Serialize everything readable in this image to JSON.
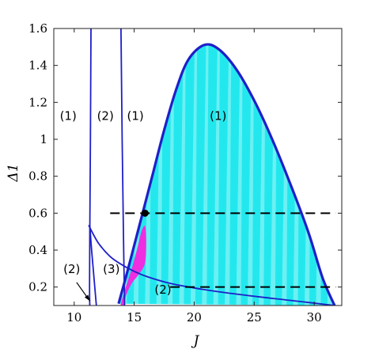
{
  "chart_data": {
    "type": "area",
    "title": "",
    "xlabel": "J",
    "ylabel": "Δ1",
    "xlim": [
      8.3,
      32.3
    ],
    "ylim": [
      0.1,
      1.6
    ],
    "x_ticks": [
      "10",
      "15",
      "20",
      "25",
      "30"
    ],
    "y_ticks": [
      "0.2",
      "0.4",
      "0.6",
      "0.8",
      "1",
      "1.2",
      "1.4",
      "1.6"
    ],
    "grid": false,
    "legend": "none",
    "colors": {
      "boundary": "#1f1fc8",
      "cyan_region": "#22e8ee",
      "cyan_stripe": "#a8f5f8",
      "magenta_region": "#ee2ee0",
      "dashed": "#000000"
    },
    "cyan_region_boundary": [
      {
        "x": 13.7,
        "y": 0.11
      },
      {
        "x": 14.5,
        "y": 0.3
      },
      {
        "x": 15.5,
        "y": 0.55
      },
      {
        "x": 16.5,
        "y": 0.8
      },
      {
        "x": 17.5,
        "y": 1.05
      },
      {
        "x": 18.5,
        "y": 1.27
      },
      {
        "x": 19.5,
        "y": 1.43
      },
      {
        "x": 20.8,
        "y": 1.51
      },
      {
        "x": 22.0,
        "y": 1.49
      },
      {
        "x": 23.5,
        "y": 1.38
      },
      {
        "x": 25.0,
        "y": 1.21
      },
      {
        "x": 26.5,
        "y": 1.0
      },
      {
        "x": 28.0,
        "y": 0.76
      },
      {
        "x": 29.5,
        "y": 0.5
      },
      {
        "x": 30.7,
        "y": 0.25
      },
      {
        "x": 31.7,
        "y": 0.1
      }
    ],
    "lower_curve": [
      {
        "x": 11.2,
        "y": 0.535
      },
      {
        "x": 12.0,
        "y": 0.44
      },
      {
        "x": 13.0,
        "y": 0.365
      },
      {
        "x": 14.0,
        "y": 0.32
      },
      {
        "x": 15.0,
        "y": 0.285
      },
      {
        "x": 16.0,
        "y": 0.258
      },
      {
        "x": 18.0,
        "y": 0.22
      },
      {
        "x": 20.0,
        "y": 0.195
      },
      {
        "x": 22.0,
        "y": 0.175
      },
      {
        "x": 25.0,
        "y": 0.15
      },
      {
        "x": 28.0,
        "y": 0.128
      },
      {
        "x": 31.7,
        "y": 0.1
      }
    ],
    "vertical_line_1": [
      {
        "x": 11.4,
        "y": 1.6
      },
      {
        "x": 11.35,
        "y": 1.0
      },
      {
        "x": 11.3,
        "y": 0.5
      },
      {
        "x": 11.28,
        "y": 0.2
      },
      {
        "x": 11.3,
        "y": 0.1
      }
    ],
    "vertical_line_1_hook": [
      {
        "x": 11.3,
        "y": 0.535
      },
      {
        "x": 11.45,
        "y": 0.4
      },
      {
        "x": 11.65,
        "y": 0.25
      },
      {
        "x": 11.85,
        "y": 0.1
      }
    ],
    "vertical_line_2": [
      {
        "x": 13.9,
        "y": 1.6
      },
      {
        "x": 14.0,
        "y": 1.0
      },
      {
        "x": 14.1,
        "y": 0.5
      },
      {
        "x": 14.15,
        "y": 0.3
      },
      {
        "x": 14.2,
        "y": 0.1
      }
    ],
    "magenta_region": [
      {
        "x": 13.85,
        "y": 0.1
      },
      {
        "x": 14.3,
        "y": 0.2
      },
      {
        "x": 14.8,
        "y": 0.3
      },
      {
        "x": 15.3,
        "y": 0.42
      },
      {
        "x": 15.6,
        "y": 0.5
      },
      {
        "x": 15.9,
        "y": 0.53
      },
      {
        "x": 16.0,
        "y": 0.45
      },
      {
        "x": 15.9,
        "y": 0.33
      },
      {
        "x": 15.4,
        "y": 0.27
      },
      {
        "x": 14.8,
        "y": 0.22
      },
      {
        "x": 14.3,
        "y": 0.15
      },
      {
        "x": 14.2,
        "y": 0.1
      }
    ],
    "dashed_lines": [
      {
        "x": [
          13.0,
          31.8
        ],
        "y": 0.6
      },
      {
        "x": [
          18.0,
          31.8
        ],
        "y": 0.2
      }
    ],
    "marker_point": {
      "x": 15.9,
      "y": 0.6
    },
    "annotations": [
      {
        "text": "(1)",
        "x": 9.5,
        "y": 1.105
      },
      {
        "text": "(2)",
        "x": 12.6,
        "y": 1.105
      },
      {
        "text": "(1)",
        "x": 15.1,
        "y": 1.105
      },
      {
        "text": "(1)",
        "x": 22.0,
        "y": 1.105
      },
      {
        "text": "(2)",
        "x": 9.8,
        "y": 0.275
      },
      {
        "text": "(3)",
        "x": 13.1,
        "y": 0.275
      },
      {
        "text": "(2)",
        "x": 17.4,
        "y": 0.165
      }
    ],
    "arrow": {
      "from": {
        "x": 10.2,
        "y": 0.225
      },
      "to": {
        "x": 11.3,
        "y": 0.125
      }
    }
  }
}
